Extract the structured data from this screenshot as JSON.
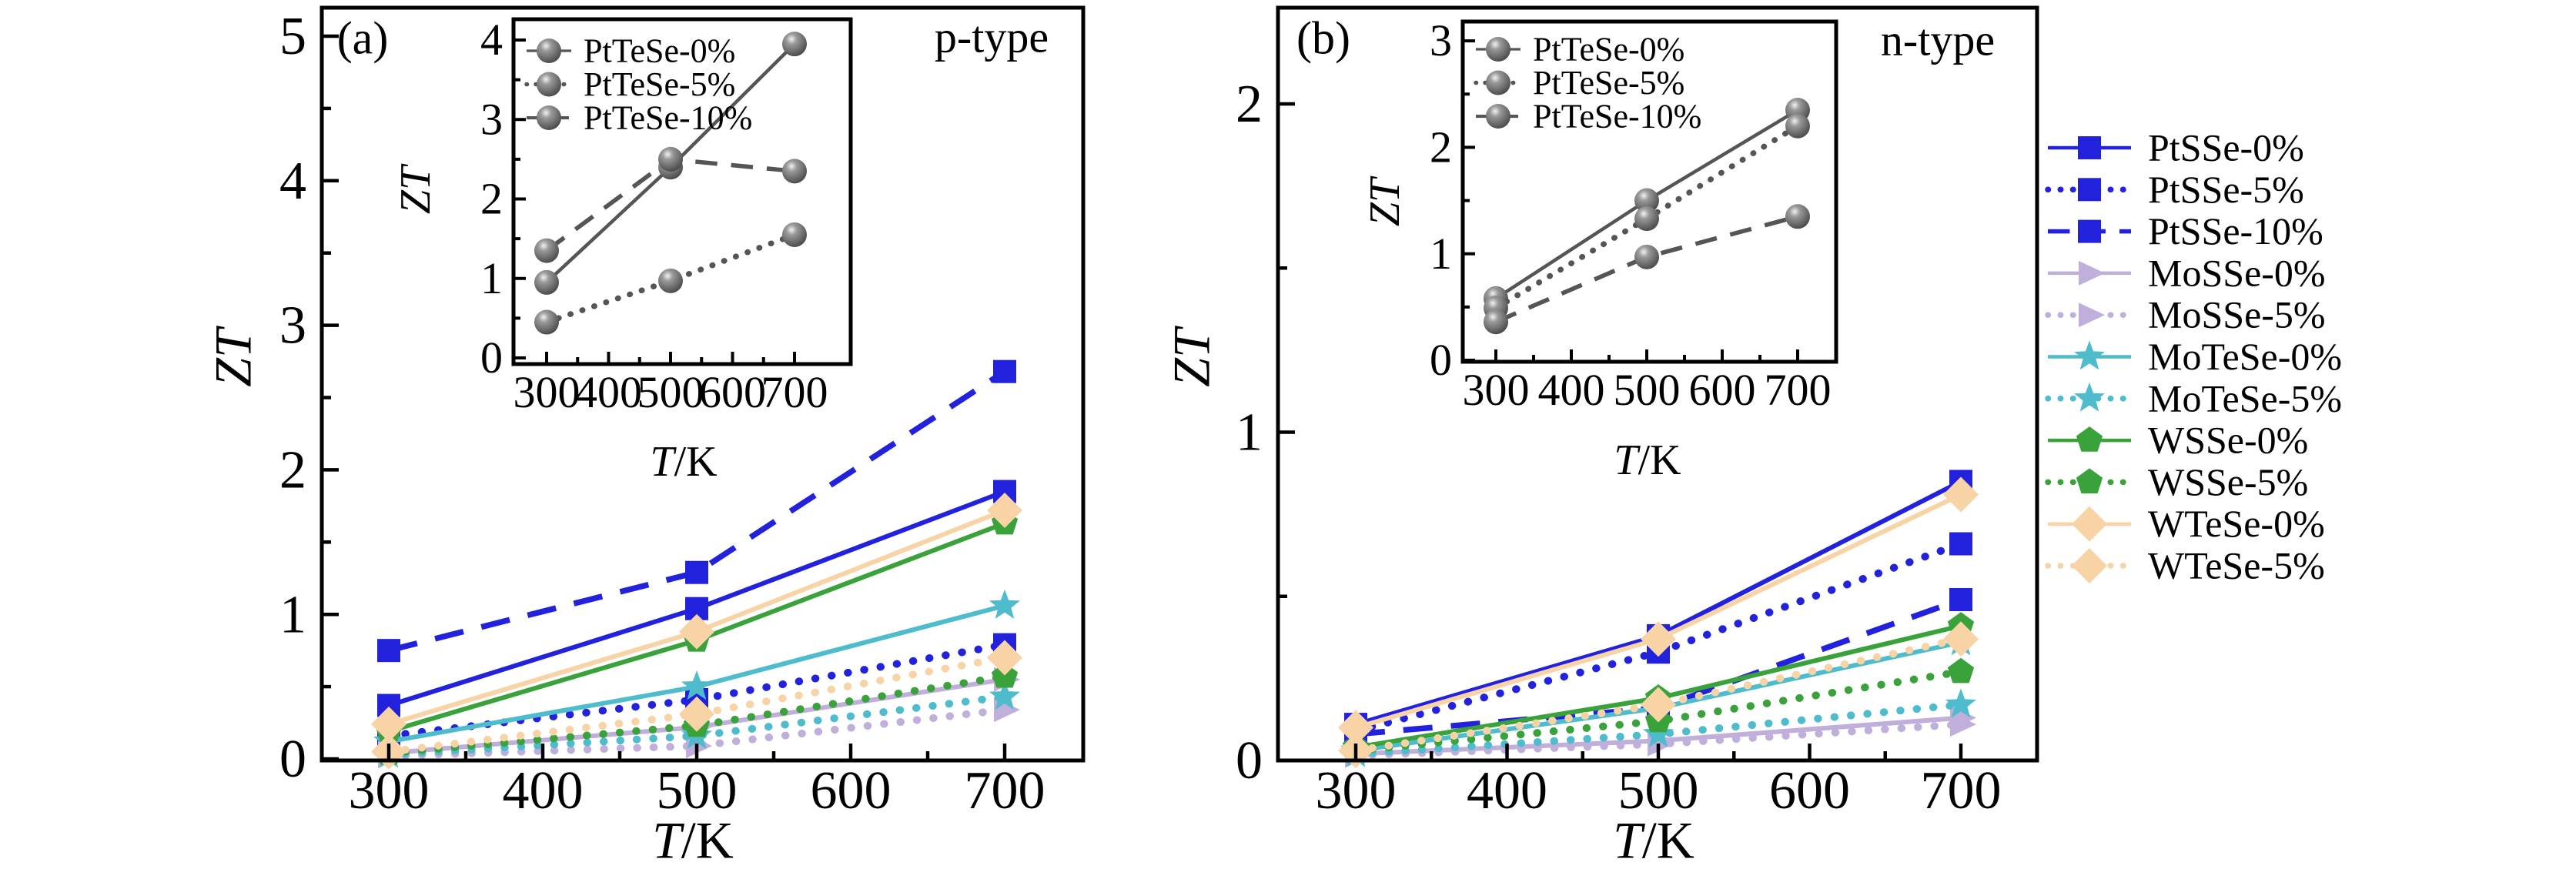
{
  "chart_data": [
    {
      "id": "panel-a",
      "type": "line",
      "panel": "(a)",
      "annotation": "p-type",
      "xlabel": "T/K",
      "ylabel": "ZT",
      "x": [
        300,
        500,
        700
      ],
      "x_ticks": [
        300,
        400,
        500,
        600,
        700
      ],
      "x_minor_ticks": [
        350,
        450,
        550,
        650
      ],
      "y_ticks": [
        0,
        1,
        2,
        3,
        4,
        5
      ],
      "y_minor_ticks": [
        0.5,
        1.5,
        2.5,
        3.5,
        4.5
      ],
      "xlim": [
        256,
        751
      ],
      "ylim": [
        0,
        5.2
      ],
      "grid": false,
      "legend_position": "shared-right",
      "series": [
        {
          "name": "PtSSe-0%",
          "color": "#2222dd",
          "line": "solid",
          "marker": "square",
          "values": [
            0.37,
            1.04,
            1.85
          ]
        },
        {
          "name": "PtSSe-5%",
          "color": "#2222dd",
          "line": "dotted",
          "marker": "square",
          "values": [
            0.16,
            0.41,
            0.79
          ]
        },
        {
          "name": "PtSSe-10%",
          "color": "#2222dd",
          "line": "dashed",
          "marker": "square",
          "values": [
            0.75,
            1.29,
            2.68
          ]
        },
        {
          "name": "MoSSe-0%",
          "color": "#c0aedb",
          "line": "solid",
          "marker": "triangle-right",
          "values": [
            0.04,
            0.22,
            0.55
          ]
        },
        {
          "name": "MoSSe-5%",
          "color": "#c0aedb",
          "line": "dotted",
          "marker": "triangle-right",
          "values": [
            0.02,
            0.09,
            0.34
          ]
        },
        {
          "name": "MoTeSe-0%",
          "color": "#4fbccd",
          "line": "solid",
          "marker": "star",
          "values": [
            0.12,
            0.5,
            1.06
          ]
        },
        {
          "name": "MoTeSe-5%",
          "color": "#4fbccd",
          "line": "dotted",
          "marker": "star",
          "values": [
            0.03,
            0.16,
            0.43
          ]
        },
        {
          "name": "WSSe-0%",
          "color": "#3aa23a",
          "line": "solid",
          "marker": "pentagon",
          "values": [
            0.19,
            0.82,
            1.63
          ]
        },
        {
          "name": "WSSe-5%",
          "color": "#3aa23a",
          "line": "dotted",
          "marker": "pentagon",
          "values": [
            0.04,
            0.23,
            0.57
          ]
        },
        {
          "name": "WTeSe-0%",
          "color": "#f8d3a5",
          "line": "solid",
          "marker": "diamond",
          "values": [
            0.24,
            0.88,
            1.72
          ]
        },
        {
          "name": "WTeSe-5%",
          "color": "#f8d3a5",
          "line": "dotted",
          "marker": "diamond",
          "values": [
            0.05,
            0.31,
            0.7
          ]
        }
      ]
    },
    {
      "id": "panel-a-inset",
      "type": "line",
      "xlabel": "T/K",
      "ylabel": "ZT",
      "x": [
        300,
        500,
        700
      ],
      "x_ticks": [
        300,
        400,
        500,
        600,
        700
      ],
      "x_minor_ticks": [
        350,
        450,
        550,
        650
      ],
      "y_ticks": [
        0,
        1,
        2,
        3,
        4
      ],
      "y_minor_ticks": [
        0.5,
        1.5,
        2.5,
        3.5
      ],
      "xlim": [
        247,
        791
      ],
      "ylim": [
        -0.08,
        4.26
      ],
      "grid": false,
      "legend_position": "upper-left",
      "series": [
        {
          "name": "PtTeSe-0%",
          "color": "#555555",
          "line": "solid",
          "marker": "circle",
          "values": [
            0.95,
            2.4,
            3.95
          ]
        },
        {
          "name": "PtTeSe-5%",
          "color": "#555555",
          "line": "dotted",
          "marker": "circle",
          "values": [
            0.45,
            0.97,
            1.55
          ]
        },
        {
          "name": "PtTeSe-10%",
          "color": "#555555",
          "line": "dashed",
          "marker": "circle",
          "values": [
            1.35,
            2.5,
            2.35
          ]
        }
      ]
    },
    {
      "id": "panel-b",
      "type": "line",
      "panel": "(b)",
      "annotation": "n-type",
      "xlabel": "T/K",
      "ylabel": "ZT",
      "x": [
        300,
        500,
        700
      ],
      "x_ticks": [
        300,
        400,
        500,
        600,
        700
      ],
      "x_minor_ticks": [
        350,
        450,
        550,
        650
      ],
      "y_ticks": [
        0,
        1,
        2
      ],
      "y_minor_ticks": [
        0.5,
        1.5
      ],
      "xlim": [
        248,
        751
      ],
      "ylim": [
        0,
        2.29
      ],
      "grid": false,
      "legend_position": "shared-right",
      "series": [
        {
          "name": "PtSSe-0%",
          "color": "#2222dd",
          "line": "solid",
          "marker": "square",
          "values": [
            0.11,
            0.38,
            0.85
          ]
        },
        {
          "name": "PtSSe-5%",
          "color": "#2222dd",
          "line": "dotted",
          "marker": "square",
          "values": [
            0.09,
            0.33,
            0.66
          ]
        },
        {
          "name": "PtSSe-10%",
          "color": "#2222dd",
          "line": "dashed",
          "marker": "square",
          "values": [
            0.08,
            0.16,
            0.49
          ]
        },
        {
          "name": "MoSSe-0%",
          "color": "#c0aedb",
          "line": "solid",
          "marker": "triangle-right",
          "values": [
            0.02,
            0.06,
            0.13
          ]
        },
        {
          "name": "MoSSe-5%",
          "color": "#c0aedb",
          "line": "dotted",
          "marker": "triangle-right",
          "values": [
            0.015,
            0.05,
            0.11
          ]
        },
        {
          "name": "MoTeSe-0%",
          "color": "#4fbccd",
          "line": "solid",
          "marker": "star",
          "values": [
            0.03,
            0.16,
            0.36
          ]
        },
        {
          "name": "MoTeSe-5%",
          "color": "#4fbccd",
          "line": "dotted",
          "marker": "star",
          "values": [
            0.02,
            0.08,
            0.17
          ]
        },
        {
          "name": "WSSe-0%",
          "color": "#3aa23a",
          "line": "solid",
          "marker": "pentagon",
          "values": [
            0.04,
            0.19,
            0.41
          ]
        },
        {
          "name": "WSSe-5%",
          "color": "#3aa23a",
          "line": "dotted",
          "marker": "pentagon",
          "values": [
            0.03,
            0.12,
            0.27
          ]
        },
        {
          "name": "WTeSe-0%",
          "color": "#f8d3a5",
          "line": "solid",
          "marker": "diamond",
          "values": [
            0.1,
            0.37,
            0.81
          ]
        },
        {
          "name": "WTeSe-5%",
          "color": "#f8d3a5",
          "line": "dotted",
          "marker": "diamond",
          "values": [
            0.03,
            0.17,
            0.37
          ]
        }
      ]
    },
    {
      "id": "panel-b-inset",
      "type": "line",
      "xlabel": "T/K",
      "ylabel": "ZT",
      "x": [
        300,
        500,
        700
      ],
      "x_ticks": [
        300,
        400,
        500,
        600,
        700
      ],
      "x_minor_ticks": [
        350,
        450,
        550,
        650
      ],
      "y_ticks": [
        0,
        1,
        2,
        3
      ],
      "y_minor_ticks": [
        0.5,
        1.5,
        2.5
      ],
      "xlim": [
        247,
        751
      ],
      "ylim": [
        -0.02,
        3.18
      ],
      "grid": false,
      "legend_position": "upper-left",
      "series": [
        {
          "name": "PtTeSe-0%",
          "color": "#555555",
          "line": "solid",
          "marker": "circle",
          "values": [
            0.58,
            1.5,
            2.35
          ]
        },
        {
          "name": "PtTeSe-5%",
          "color": "#555555",
          "line": "dotted",
          "marker": "circle",
          "values": [
            0.49,
            1.33,
            2.2
          ]
        },
        {
          "name": "PtTeSe-10%",
          "color": "#555555",
          "line": "dashed",
          "marker": "circle",
          "values": [
            0.36,
            0.97,
            1.35
          ]
        }
      ]
    }
  ]
}
